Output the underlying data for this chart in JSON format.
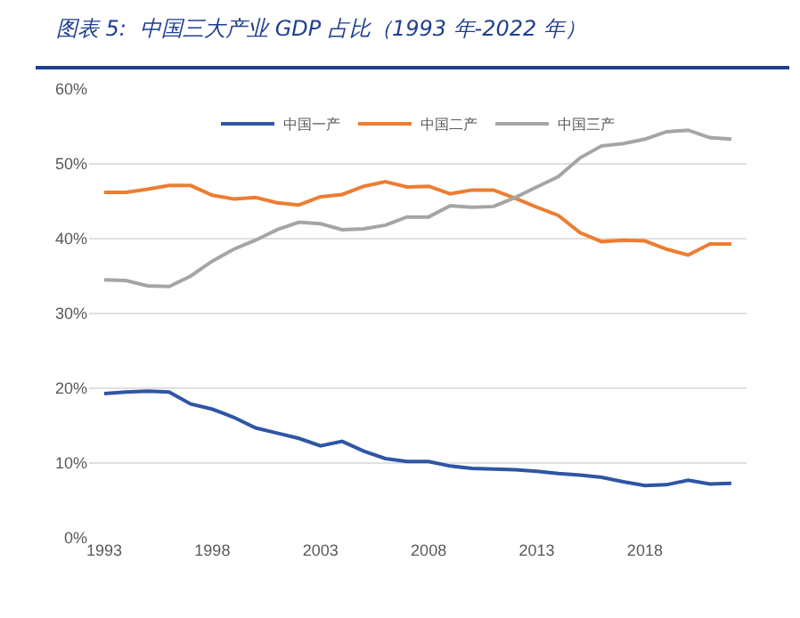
{
  "chart_data": {
    "type": "line",
    "title": "图表 5:  中国三大产业 GDP 占比（1993 年-2022 年）",
    "x": [
      1993,
      1994,
      1995,
      1996,
      1997,
      1998,
      1999,
      2000,
      2001,
      2002,
      2003,
      2004,
      2005,
      2006,
      2007,
      2008,
      2009,
      2010,
      2011,
      2012,
      2013,
      2014,
      2015,
      2016,
      2017,
      2018,
      2019,
      2020,
      2021,
      2022
    ],
    "series": [
      {
        "name": "中国一产",
        "color": "#2f55a4",
        "values": [
          19.3,
          19.5,
          19.6,
          19.5,
          17.9,
          17.2,
          16.1,
          14.7,
          14.0,
          13.3,
          12.3,
          12.9,
          11.6,
          10.6,
          10.2,
          10.2,
          9.6,
          9.3,
          9.2,
          9.1,
          8.9,
          8.6,
          8.4,
          8.1,
          7.5,
          7.0,
          7.1,
          7.7,
          7.2,
          7.3
        ]
      },
      {
        "name": "中国二产",
        "color": "#ed7d31",
        "values": [
          46.2,
          46.2,
          46.6,
          47.1,
          47.1,
          45.8,
          45.3,
          45.5,
          44.8,
          44.5,
          45.6,
          45.9,
          47.0,
          47.6,
          46.9,
          47.0,
          46.0,
          46.5,
          46.5,
          45.4,
          44.2,
          43.1,
          40.8,
          39.6,
          39.8,
          39.7,
          38.6,
          37.8,
          39.3,
          39.3
        ]
      },
      {
        "name": "中国三产",
        "color": "#a5a5a5",
        "values": [
          34.5,
          34.4,
          33.7,
          33.6,
          35.0,
          37.0,
          38.6,
          39.8,
          41.2,
          42.2,
          42.0,
          41.2,
          41.3,
          41.8,
          42.9,
          42.9,
          44.4,
          44.2,
          44.3,
          45.5,
          46.9,
          48.3,
          50.8,
          52.4,
          52.7,
          53.3,
          54.3,
          54.5,
          53.5,
          53.3
        ]
      }
    ],
    "xlim": [
      1992.3,
      2022.7
    ],
    "xticks": [
      1993,
      1998,
      2003,
      2008,
      2013,
      2018
    ],
    "ylim": [
      0,
      60
    ],
    "yticks": [
      {
        "value": 0,
        "label": "0%"
      },
      {
        "value": 10,
        "label": "10%"
      },
      {
        "value": 20,
        "label": "20%"
      },
      {
        "value": 30,
        "label": "30%"
      },
      {
        "value": 40,
        "label": "40%"
      },
      {
        "value": 50,
        "label": "50%"
      },
      {
        "value": 60,
        "label": "60%"
      }
    ],
    "grid": "y",
    "legend": "top",
    "marker": "none",
    "line_style": "solid"
  }
}
